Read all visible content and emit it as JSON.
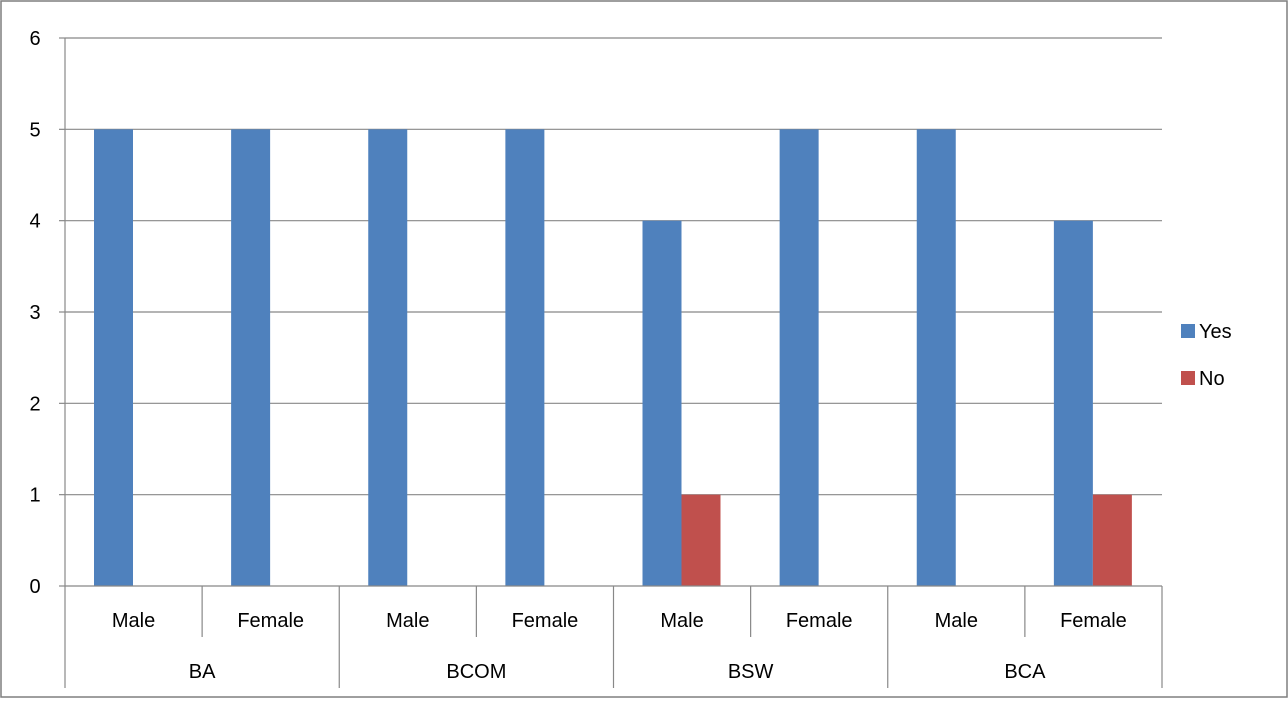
{
  "chart_data": {
    "type": "bar",
    "groups": [
      {
        "label": "BA",
        "subcategories": [
          "Male",
          "Female"
        ]
      },
      {
        "label": "BCOM",
        "subcategories": [
          "Male",
          "Female"
        ]
      },
      {
        "label": "BSW",
        "subcategories": [
          "Male",
          "Female"
        ]
      },
      {
        "label": "BCA",
        "subcategories": [
          "Male",
          "Female"
        ]
      }
    ],
    "categories": [
      "BA Male",
      "BA Female",
      "BCOM Male",
      "BCOM Female",
      "BSW Male",
      "BSW Female",
      "BCA Male",
      "BCA Female"
    ],
    "series": [
      {
        "name": "Yes",
        "color": "#4F81BD",
        "values": [
          5,
          5,
          5,
          5,
          4,
          5,
          5,
          4
        ]
      },
      {
        "name": "No",
        "color": "#C0504D",
        "values": [
          0,
          0,
          0,
          0,
          1,
          0,
          0,
          1
        ]
      }
    ],
    "ylim": [
      0,
      6
    ],
    "yticks": [
      "0",
      "1",
      "2",
      "3",
      "4",
      "5",
      "6"
    ],
    "grid": true,
    "legend_position": "right",
    "title": "",
    "xlabel": "",
    "ylabel": ""
  }
}
